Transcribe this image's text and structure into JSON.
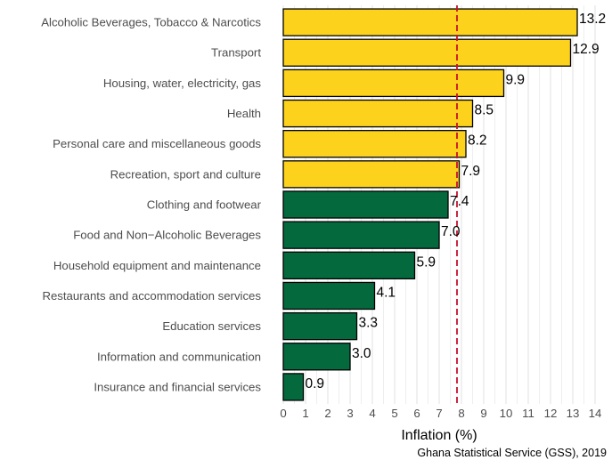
{
  "chart_data": {
    "type": "bar",
    "orientation": "horizontal",
    "categories": [
      "Alcoholic Beverages, Tobacco & Narcotics",
      "Transport",
      "Housing, water, electricity, gas",
      "Health",
      "Personal care and miscellaneous goods",
      "Recreation, sport and culture",
      "Clothing and footwear",
      "Food and Non−Alcoholic Beverages",
      "Household equipment and  maintenance",
      "Restaurants and accommodation services",
      "Education services",
      "Information and communication",
      "Insurance and financial services"
    ],
    "values": [
      13.2,
      12.9,
      9.9,
      8.5,
      8.2,
      7.9,
      7.4,
      7.0,
      5.9,
      4.1,
      3.3,
      3.0,
      0.9
    ],
    "value_labels": [
      "13.2",
      "12.9",
      "9.9",
      "8.5",
      "8.2",
      "7.9",
      "7.4",
      "7.0",
      "5.9",
      "4.1",
      "3.3",
      "3.0",
      "0.9"
    ],
    "above_reference": [
      true,
      true,
      true,
      true,
      true,
      true,
      false,
      false,
      false,
      false,
      false,
      false,
      false
    ],
    "reference_line": 7.8,
    "xlim": [
      0,
      14
    ],
    "x_ticks": [
      "0",
      "1",
      "2",
      "3",
      "4",
      "5",
      "6",
      "7",
      "8",
      "9",
      "10",
      "11",
      "12",
      "13",
      "14"
    ],
    "xlabel": "Inflation (%)",
    "caption": "Ghana Statistical Service (GSS), 2019",
    "grid": true,
    "legend": "none",
    "colors": {
      "above": "#fcd21c",
      "below": "#046a3e",
      "reference": "#c8102e",
      "grid": "#e3e3e3",
      "outline": "#000000",
      "label": "#4d4d4d"
    }
  }
}
